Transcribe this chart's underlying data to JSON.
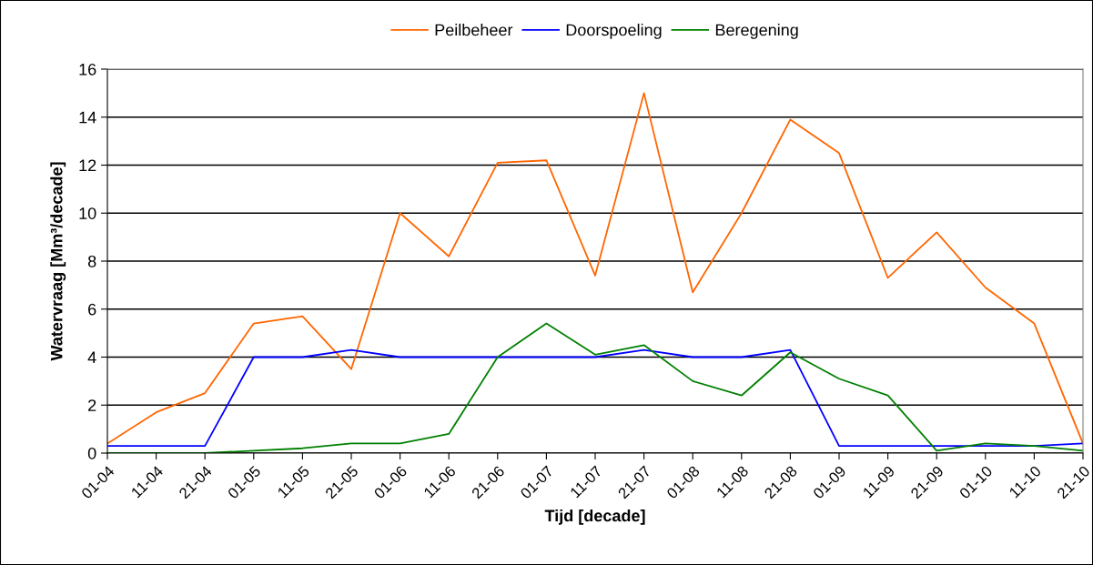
{
  "chart_data": {
    "type": "line",
    "xlabel": "Tijd [decade]",
    "ylabel": "Watervraag [Mm³/decade]",
    "categories": [
      "01-04",
      "11-04",
      "21-04",
      "01-05",
      "11-05",
      "21-05",
      "01-06",
      "11-06",
      "21-06",
      "01-07",
      "11-07",
      "21-07",
      "01-08",
      "11-08",
      "21-08",
      "01-09",
      "11-09",
      "21-09",
      "01-10",
      "11-10",
      "21-10"
    ],
    "series": [
      {
        "name": "Peilbeheer",
        "color": "#ff6600",
        "values": [
          0.4,
          1.7,
          2.5,
          5.4,
          5.7,
          3.5,
          10.0,
          8.2,
          12.1,
          12.2,
          7.4,
          15.0,
          6.7,
          10.0,
          13.9,
          12.5,
          7.3,
          9.2,
          6.9,
          5.4,
          0.4
        ]
      },
      {
        "name": "Doorspoeling",
        "color": "#0000ff",
        "values": [
          0.3,
          0.3,
          0.3,
          4.0,
          4.0,
          4.3,
          4.0,
          4.0,
          4.0,
          4.0,
          4.0,
          4.3,
          4.0,
          4.0,
          4.3,
          0.3,
          0.3,
          0.3,
          0.3,
          0.3,
          0.4
        ]
      },
      {
        "name": "Beregening",
        "color": "#008000",
        "values": [
          0.0,
          0.0,
          0.0,
          0.1,
          0.2,
          0.4,
          0.4,
          0.8,
          4.0,
          5.4,
          4.1,
          4.5,
          3.0,
          2.4,
          4.2,
          3.1,
          2.4,
          0.1,
          0.4,
          0.3,
          0.1
        ]
      }
    ],
    "ylim": [
      0,
      16
    ],
    "yticks": [
      0,
      2,
      4,
      6,
      8,
      10,
      12,
      14,
      16
    ],
    "grid": "y",
    "legend": "top"
  }
}
